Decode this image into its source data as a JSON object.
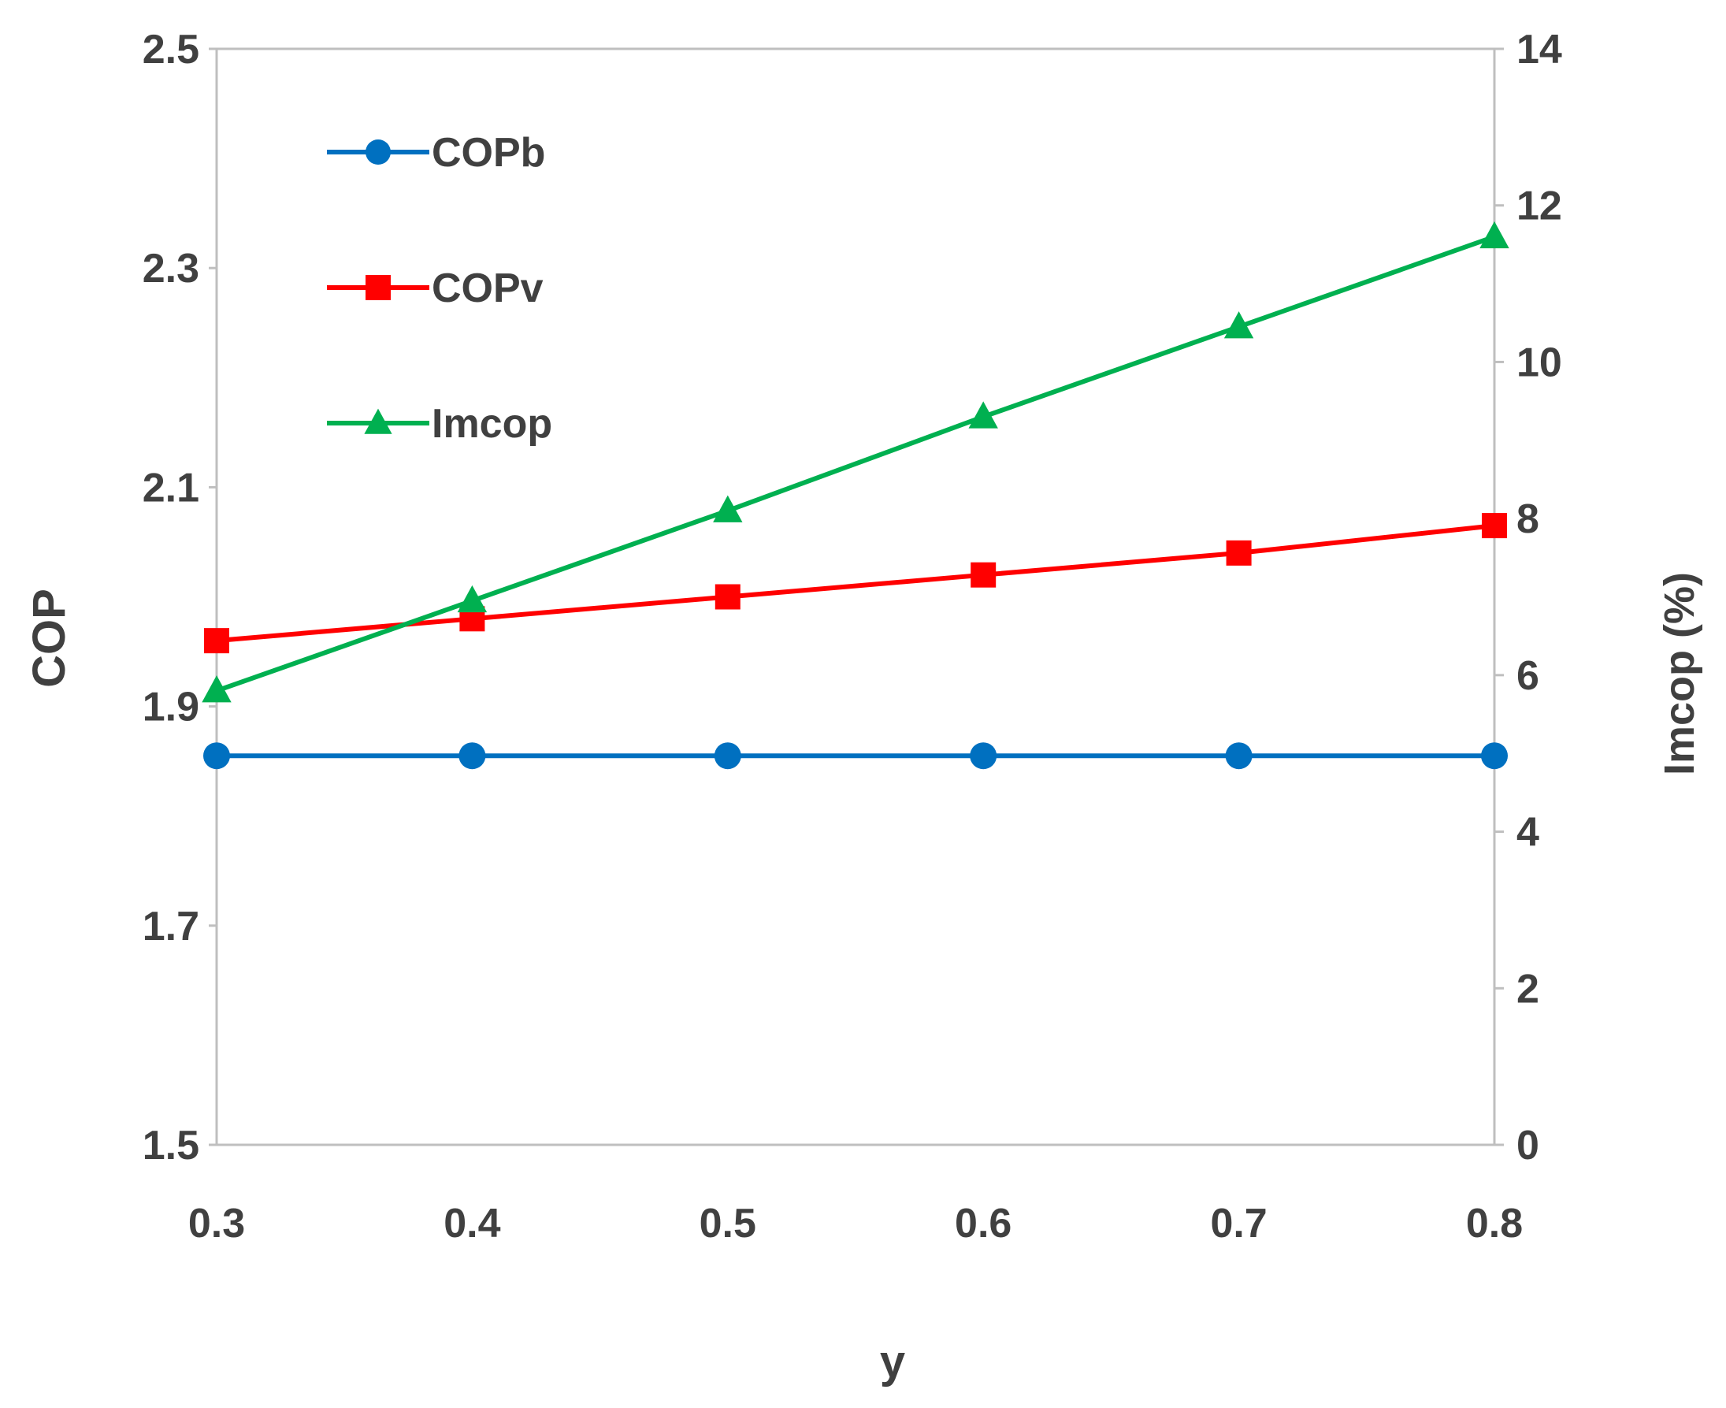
{
  "chart_data": {
    "type": "line",
    "title": "",
    "xlabel": "y",
    "ylabel": "COP",
    "y2label": "Imcop (%)",
    "x": [
      0.3,
      0.4,
      0.5,
      0.6,
      0.7,
      0.8
    ],
    "x_ticks": [
      "0.3",
      "0.4",
      "0.5",
      "0.6",
      "0.7",
      "0.8"
    ],
    "xlim": [
      0.3,
      0.8
    ],
    "ylim": [
      1.5,
      2.5
    ],
    "y_ticks": [
      "1.5",
      "1.7",
      "1.9",
      "2.1",
      "2.3",
      "2.5"
    ],
    "y2lim": [
      0,
      14
    ],
    "y2_ticks": [
      "0",
      "2",
      "4",
      "6",
      "8",
      "10",
      "12",
      "14"
    ],
    "grid": false,
    "legend_position": "top-left",
    "series": [
      {
        "name": "COPb",
        "axis": "left",
        "color": "#0070c0",
        "marker": "circle",
        "values": [
          1.855,
          1.855,
          1.855,
          1.855,
          1.855,
          1.855
        ]
      },
      {
        "name": "COPv",
        "axis": "left",
        "color": "#ff0000",
        "marker": "square",
        "values": [
          1.96,
          1.98,
          2.0,
          2.02,
          2.04,
          2.065
        ]
      },
      {
        "name": "Imcop",
        "axis": "right",
        "color": "#00b050",
        "marker": "triangle",
        "values": [
          5.8,
          6.95,
          8.1,
          9.3,
          10.45,
          11.6
        ]
      }
    ]
  }
}
